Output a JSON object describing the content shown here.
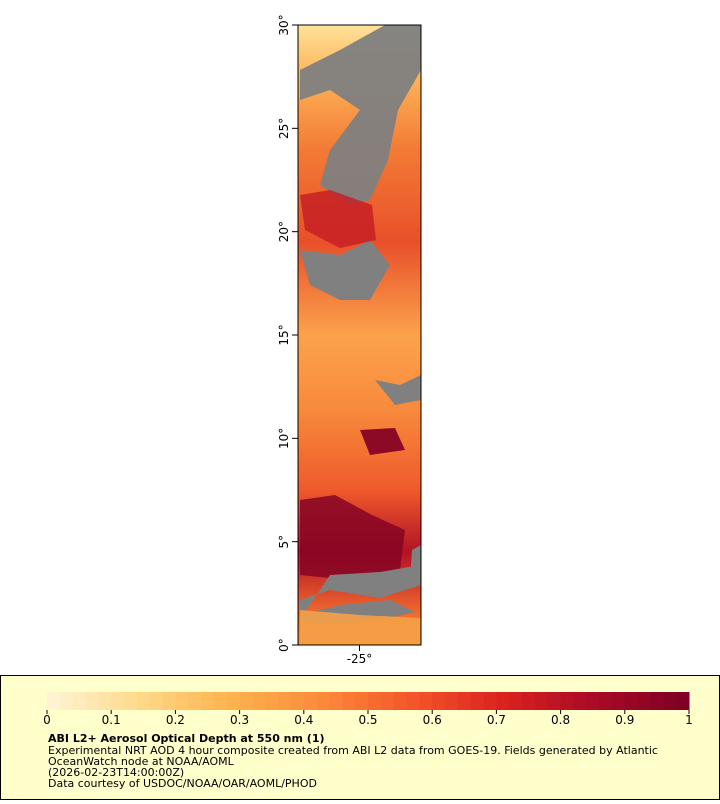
{
  "map": {
    "lat_range": [
      0,
      30
    ],
    "lon_range": [
      -28,
      -22
    ],
    "lat_ticks": [
      {
        "value": 0,
        "label": "0°"
      },
      {
        "value": 5,
        "label": "5°"
      },
      {
        "value": 10,
        "label": "10°"
      },
      {
        "value": 15,
        "label": "15°"
      },
      {
        "value": 20,
        "label": "20°"
      },
      {
        "value": 25,
        "label": "25°"
      },
      {
        "value": 30,
        "label": "30°"
      }
    ],
    "lon_ticks": [
      {
        "value": -25,
        "label": "-25°"
      }
    ]
  },
  "legend": {
    "colorbar": {
      "range": [
        0,
        1
      ],
      "ticks": [
        0,
        0.1,
        0.2,
        0.3,
        0.4,
        0.5,
        0.6,
        0.7,
        0.8,
        0.9,
        1
      ],
      "colors": [
        "#fff5d6",
        "#fed98a",
        "#fdb34f",
        "#fc8a3a",
        "#f4542a",
        "#d9201f",
        "#a80a26",
        "#7d0025"
      ]
    },
    "title": "ABI L2+ Aerosol Optical Depth at 550 nm (1)",
    "lines": [
      "Experimental NRT AOD 4 hour composite created from ABI L2 data from GOES-19. Fields generated by Atlantic",
      "OceanWatch node at NOAA/AOML",
      "(2026-02-23T14:00:00Z)",
      "Data courtesy of USDOC/NOAA/OAR/AOML/PHOD"
    ]
  }
}
